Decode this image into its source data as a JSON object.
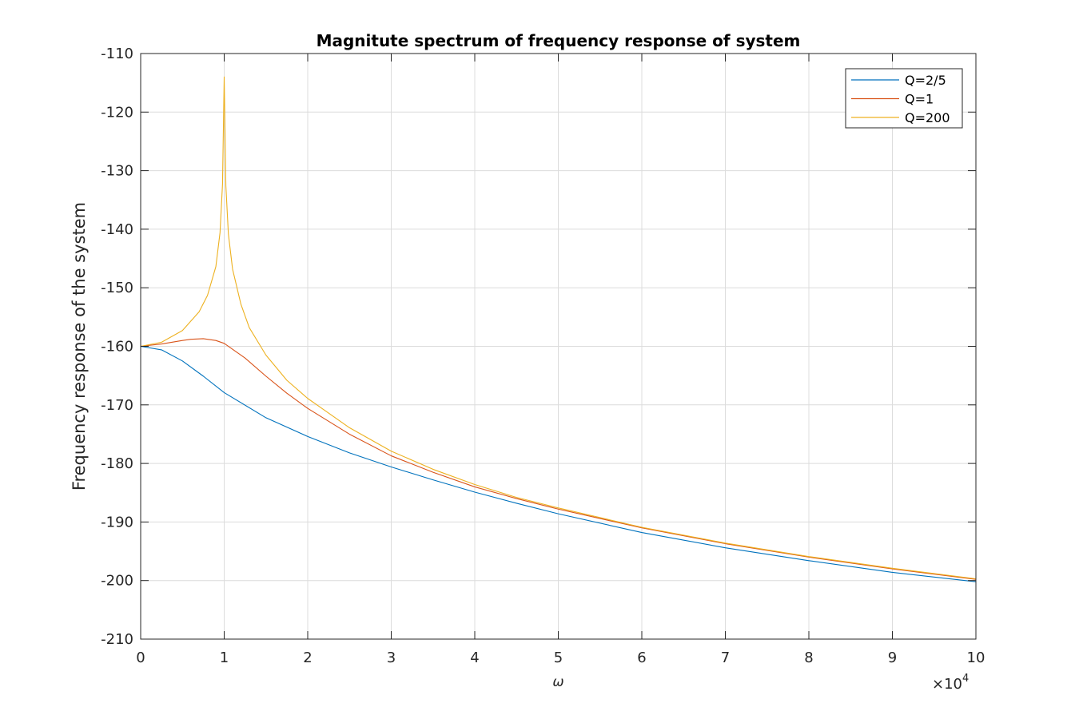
{
  "chart_data": {
    "type": "line",
    "title": "Magnitute spectrum of frequency response of system",
    "xlabel": "ω",
    "ylabel": "Frequency response of the system",
    "x_exponent_label": "×10",
    "x_exponent_power": "4",
    "xlim": [
      0,
      10
    ],
    "ylim": [
      -210,
      -110
    ],
    "xticks": [
      0,
      1,
      2,
      3,
      4,
      5,
      6,
      7,
      8,
      9,
      10
    ],
    "yticks": [
      -110,
      -120,
      -130,
      -140,
      -150,
      -160,
      -170,
      -180,
      -190,
      -200,
      -210
    ],
    "grid": true,
    "legend_position": "top-right",
    "series": [
      {
        "name": "Q=2/5",
        "color": "#0072BD",
        "x": [
          0,
          0.25,
          0.5,
          0.75,
          1,
          1.5,
          2,
          2.5,
          3,
          3.5,
          4,
          4.5,
          5,
          6,
          7,
          8,
          9,
          10
        ],
        "values": [
          -160,
          -160.6,
          -162.5,
          -165.1,
          -167.9,
          -172.2,
          -175.4,
          -178.2,
          -180.6,
          -182.8,
          -184.9,
          -186.8,
          -188.6,
          -191.8,
          -194.4,
          -196.6,
          -198.6,
          -200.2
        ]
      },
      {
        "name": "Q=1",
        "color": "#D95319",
        "x": [
          0,
          0.25,
          0.5,
          0.6,
          0.75,
          0.9,
          1,
          1.25,
          1.5,
          1.75,
          2,
          2.5,
          3,
          3.5,
          4,
          4.5,
          5,
          6,
          7,
          8,
          9,
          10
        ],
        "values": [
          -160,
          -159.6,
          -159.0,
          -158.8,
          -158.7,
          -159.0,
          -159.5,
          -162.0,
          -165.1,
          -168.0,
          -170.6,
          -175.0,
          -178.7,
          -181.5,
          -184.0,
          -186.0,
          -187.8,
          -191.0,
          -193.7,
          -196.0,
          -198.0,
          -199.8
        ]
      },
      {
        "name": "Q=200",
        "color": "#EDB120",
        "x": [
          0,
          0.25,
          0.5,
          0.7,
          0.8,
          0.9,
          0.95,
          0.98,
          1,
          1.02,
          1.05,
          1.1,
          1.2,
          1.3,
          1.5,
          1.75,
          2,
          2.5,
          3,
          3.5,
          4,
          4.5,
          5,
          6,
          7,
          8,
          9,
          10
        ],
        "values": [
          -160,
          -159.3,
          -157.3,
          -154.1,
          -151.3,
          -146.4,
          -140.6,
          -132.3,
          -114.0,
          -132.6,
          -140.8,
          -146.8,
          -152.8,
          -156.8,
          -161.5,
          -165.8,
          -168.9,
          -173.9,
          -177.9,
          -181.0,
          -183.6,
          -185.8,
          -187.6,
          -190.9,
          -193.6,
          -195.9,
          -197.9,
          -199.7
        ]
      }
    ]
  }
}
